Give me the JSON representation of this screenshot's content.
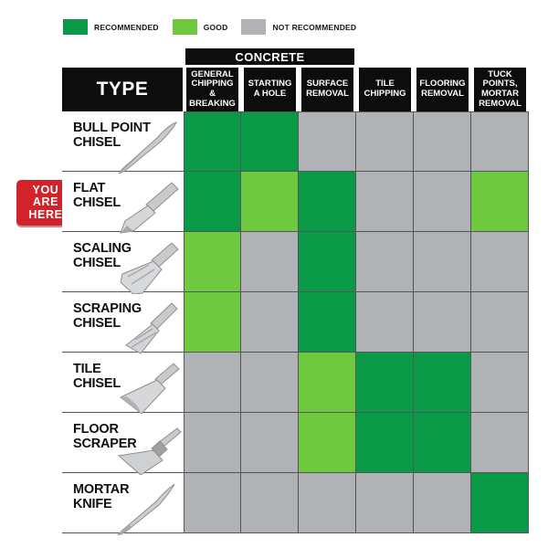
{
  "page": {
    "background": "#ffffff"
  },
  "colors": {
    "recommended": "#0a9a47",
    "good": "#6fc83e",
    "not_recommended": "#b1b2b5",
    "header_bg": "#0d0d0d",
    "badge_red": "#d2232a",
    "grid_line": "#54555a"
  },
  "legend": {
    "items": [
      {
        "label": "RECOMMENDED",
        "status": "recommended"
      },
      {
        "label": "GOOD",
        "status": "good"
      },
      {
        "label": "NOT RECOMMENDED",
        "status": "not_recommended"
      }
    ]
  },
  "badge": {
    "text": "YOU\nARE\nHERE"
  },
  "table": {
    "group_header": "CONCRETE",
    "group_span_columns": 3,
    "type_header": "TYPE",
    "columns": [
      "GENERAL CHIPPING & BREAKING",
      "STARTING A HOLE",
      "SURFACE REMOVAL",
      "TILE CHIPPING",
      "FLOORING REMOVAL",
      "TUCK POINTS, MORTAR REMOVAL"
    ],
    "rows": [
      {
        "label": "BULL POINT CHISEL",
        "icon": "bull-point-chisel-icon",
        "you_are_here": false,
        "statuses": [
          "recommended",
          "recommended",
          "not_recommended",
          "not_recommended",
          "not_recommended",
          "not_recommended"
        ]
      },
      {
        "label": "FLAT CHISEL",
        "icon": "flat-chisel-icon",
        "you_are_here": true,
        "statuses": [
          "recommended",
          "good",
          "recommended",
          "not_recommended",
          "not_recommended",
          "good"
        ]
      },
      {
        "label": "SCALING CHISEL",
        "icon": "scaling-chisel-icon",
        "you_are_here": false,
        "statuses": [
          "good",
          "not_recommended",
          "recommended",
          "not_recommended",
          "not_recommended",
          "not_recommended"
        ]
      },
      {
        "label": "SCRAPING CHISEL",
        "icon": "scraping-chisel-icon",
        "you_are_here": false,
        "statuses": [
          "good",
          "not_recommended",
          "recommended",
          "not_recommended",
          "not_recommended",
          "not_recommended"
        ]
      },
      {
        "label": "TILE CHISEL",
        "icon": "tile-chisel-icon",
        "you_are_here": false,
        "statuses": [
          "not_recommended",
          "not_recommended",
          "good",
          "recommended",
          "recommended",
          "not_recommended"
        ]
      },
      {
        "label": "FLOOR SCRAPER",
        "icon": "floor-scraper-icon",
        "you_are_here": false,
        "statuses": [
          "not_recommended",
          "not_recommended",
          "good",
          "recommended",
          "recommended",
          "not_recommended"
        ]
      },
      {
        "label": "MORTAR KNIFE",
        "icon": "mortar-knife-icon",
        "you_are_here": false,
        "statuses": [
          "not_recommended",
          "not_recommended",
          "not_recommended",
          "not_recommended",
          "not_recommended",
          "recommended"
        ]
      }
    ]
  },
  "chart_data": {
    "type": "table",
    "title": "",
    "legend": [
      "RECOMMENDED",
      "GOOD",
      "NOT RECOMMENDED"
    ],
    "column_group": {
      "label": "CONCRETE",
      "columns": [
        "GENERAL CHIPPING & BREAKING",
        "STARTING A HOLE",
        "SURFACE REMOVAL"
      ]
    },
    "columns": [
      "GENERAL CHIPPING & BREAKING",
      "STARTING A HOLE",
      "SURFACE REMOVAL",
      "TILE CHIPPING",
      "FLOORING REMOVAL",
      "TUCK POINTS, MORTAR REMOVAL"
    ],
    "rows": [
      {
        "type": "BULL POINT CHISEL",
        "ratings": [
          "RECOMMENDED",
          "RECOMMENDED",
          "NOT RECOMMENDED",
          "NOT RECOMMENDED",
          "NOT RECOMMENDED",
          "NOT RECOMMENDED"
        ]
      },
      {
        "type": "FLAT CHISEL",
        "highlighted": "YOU ARE HERE",
        "ratings": [
          "RECOMMENDED",
          "GOOD",
          "RECOMMENDED",
          "NOT RECOMMENDED",
          "NOT RECOMMENDED",
          "GOOD"
        ]
      },
      {
        "type": "SCALING CHISEL",
        "ratings": [
          "GOOD",
          "NOT RECOMMENDED",
          "RECOMMENDED",
          "NOT RECOMMENDED",
          "NOT RECOMMENDED",
          "NOT RECOMMENDED"
        ]
      },
      {
        "type": "SCRAPING CHISEL",
        "ratings": [
          "GOOD",
          "NOT RECOMMENDED",
          "RECOMMENDED",
          "NOT RECOMMENDED",
          "NOT RECOMMENDED",
          "NOT RECOMMENDED"
        ]
      },
      {
        "type": "TILE CHISEL",
        "ratings": [
          "NOT RECOMMENDED",
          "NOT RECOMMENDED",
          "GOOD",
          "RECOMMENDED",
          "RECOMMENDED",
          "NOT RECOMMENDED"
        ]
      },
      {
        "type": "FLOOR SCRAPER",
        "ratings": [
          "NOT RECOMMENDED",
          "NOT RECOMMENDED",
          "GOOD",
          "RECOMMENDED",
          "RECOMMENDED",
          "NOT RECOMMENDED"
        ]
      },
      {
        "type": "MORTAR KNIFE",
        "ratings": [
          "NOT RECOMMENDED",
          "NOT RECOMMENDED",
          "NOT RECOMMENDED",
          "NOT RECOMMENDED",
          "NOT RECOMMENDED",
          "RECOMMENDED"
        ]
      }
    ]
  }
}
